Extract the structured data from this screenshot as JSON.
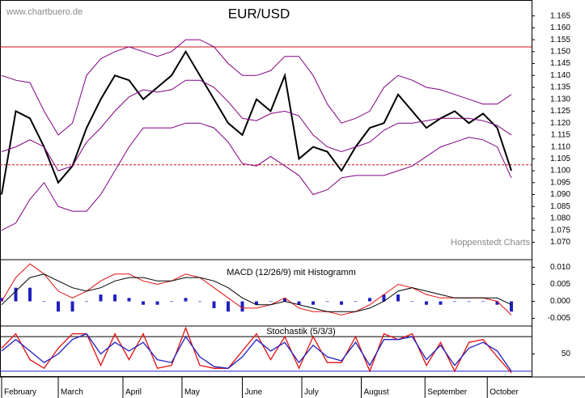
{
  "chart_data": [
    {
      "type": "line",
      "title": "EUR/USD",
      "annotations": [
        "www.chartbuero.de",
        "Hoppenstedt Charts"
      ],
      "x": [
        0,
        1,
        2,
        3,
        4,
        5,
        6,
        7,
        8,
        9,
        10,
        11,
        12,
        13,
        14,
        15,
        16,
        17,
        18,
        19,
        20,
        21,
        22,
        23,
        24,
        25,
        26,
        27,
        28,
        29,
        30,
        31,
        32,
        33,
        34,
        35,
        36
      ],
      "xlim": [
        0,
        37.43
      ],
      "ylim": [
        1.063,
        1.171
      ],
      "yticks": [
        {
          "value": 1.07,
          "label": "1.070"
        },
        1.075,
        {
          "value": 1.08,
          "label": "1.080"
        },
        1.085,
        {
          "value": 1.09,
          "label": "1.090"
        },
        1.095,
        {
          "value": 1.1,
          "label": "1.100"
        },
        1.105,
        {
          "value": 1.11,
          "label": "1.110"
        },
        1.115,
        {
          "value": 1.12,
          "label": "1.120"
        },
        1.125,
        {
          "value": 1.13,
          "label": "1.130"
        },
        1.135,
        {
          "value": 1.14,
          "label": "1.140"
        },
        1.145,
        {
          "value": 1.15,
          "label": "1.150"
        },
        1.155,
        {
          "value": 1.16,
          "label": "1.160"
        },
        1.165
      ],
      "hlines": [
        {
          "value": 1.152,
          "color": "#d01010",
          "dashed": false
        },
        {
          "value": 1.1025,
          "color": "#d01010",
          "dashed": true
        }
      ],
      "series": [
        {
          "color": "#000000",
          "width": 2,
          "values": [
            1.09,
            1.125,
            1.122,
            1.11,
            1.095,
            1.102,
            1.118,
            1.13,
            1.14,
            1.138,
            1.13,
            1.135,
            1.14,
            1.15,
            1.14,
            1.13,
            1.12,
            1.115,
            1.13,
            1.125,
            1.14,
            1.105,
            1.11,
            1.108,
            1.1,
            1.11,
            1.118,
            1.12,
            1.132,
            1.125,
            1.118,
            1.122,
            1.125,
            1.12,
            1.124,
            1.118,
            1.1
          ]
        },
        {
          "color": "#800080",
          "width": 1,
          "values": [
            1.14,
            1.138,
            1.137,
            1.125,
            1.115,
            1.12,
            1.14,
            1.147,
            1.15,
            1.152,
            1.15,
            1.148,
            1.15,
            1.155,
            1.155,
            1.152,
            1.145,
            1.14,
            1.14,
            1.142,
            1.148,
            1.148,
            1.14,
            1.128,
            1.12,
            1.122,
            1.125,
            1.135,
            1.14,
            1.138,
            1.135,
            1.134,
            1.132,
            1.13,
            1.128,
            1.128,
            1.132
          ]
        },
        {
          "color": "#800080",
          "width": 1,
          "values": [
            1.108,
            1.11,
            1.113,
            1.11,
            1.1,
            1.102,
            1.112,
            1.118,
            1.125,
            1.131,
            1.134,
            1.133,
            1.134,
            1.138,
            1.138,
            1.135,
            1.129,
            1.122,
            1.121,
            1.124,
            1.125,
            1.123,
            1.115,
            1.11,
            1.108,
            1.11,
            1.112,
            1.117,
            1.12,
            1.12,
            1.121,
            1.122,
            1.122,
            1.122,
            1.121,
            1.119,
            1.115
          ]
        },
        {
          "color": "#800080",
          "width": 1,
          "values": [
            1.075,
            1.078,
            1.088,
            1.095,
            1.085,
            1.083,
            1.083,
            1.09,
            1.1,
            1.11,
            1.118,
            1.118,
            1.118,
            1.12,
            1.12,
            1.118,
            1.112,
            1.103,
            1.102,
            1.106,
            1.102,
            1.098,
            1.09,
            1.092,
            1.097,
            1.098,
            1.098,
            1.098,
            1.1,
            1.102,
            1.106,
            1.11,
            1.112,
            1.114,
            1.113,
            1.11,
            1.097
          ]
        }
      ]
    },
    {
      "type": "macd",
      "title": "MACD (12/26/9) mit Histogramm",
      "x": [
        0,
        1,
        2,
        3,
        4,
        5,
        6,
        7,
        8,
        9,
        10,
        11,
        12,
        13,
        14,
        15,
        16,
        17,
        18,
        19,
        20,
        21,
        22,
        23,
        24,
        25,
        26,
        27,
        28,
        29,
        30,
        31,
        32,
        33,
        34,
        35,
        36
      ],
      "xlim": [
        0,
        37.43
      ],
      "ylim": [
        -0.007,
        0.012
      ],
      "yticks": [
        {
          "value": 0.01,
          "label": "0.010"
        },
        0.005,
        {
          "value": 0,
          "label": "0.000"
        },
        -0.005
      ],
      "histogram": {
        "color": "#2020c0",
        "values": [
          0.001,
          0.004,
          0.004,
          0.0,
          -0.003,
          -0.003,
          0.0,
          0.002,
          0.002,
          0.001,
          -0.001,
          -0.001,
          0.0,
          0.001,
          0.0,
          -0.002,
          -0.003,
          -0.003,
          -0.001,
          0.0,
          0.001,
          -0.001,
          -0.001,
          0.0,
          -0.001,
          0.0,
          0.001,
          0.002,
          0.002,
          0.0,
          -0.001,
          -0.001,
          0.0,
          0.0,
          0.0,
          -0.001,
          -0.003
        ]
      },
      "series": [
        {
          "color": "#e01010",
          "width": 1,
          "values": [
            0.0,
            0.007,
            0.011,
            0.008,
            0.003,
            0.001,
            0.003,
            0.006,
            0.008,
            0.008,
            0.006,
            0.005,
            0.006,
            0.008,
            0.007,
            0.004,
            0.001,
            -0.002,
            -0.002,
            -0.001,
            0.001,
            -0.002,
            -0.003,
            -0.003,
            -0.004,
            -0.003,
            -0.001,
            0.002,
            0.005,
            0.004,
            0.002,
            0.001,
            0.001,
            0.001,
            0.001,
            0.0,
            -0.004
          ]
        },
        {
          "color": "#000000",
          "width": 1,
          "values": [
            -0.001,
            0.003,
            0.007,
            0.008,
            0.006,
            0.004,
            0.003,
            0.004,
            0.006,
            0.007,
            0.007,
            0.006,
            0.006,
            0.007,
            0.007,
            0.006,
            0.004,
            0.001,
            -0.001,
            -0.001,
            0.0,
            -0.001,
            -0.002,
            -0.003,
            -0.003,
            -0.003,
            -0.002,
            0.0,
            0.003,
            0.004,
            0.003,
            0.002,
            0.001,
            0.001,
            0.001,
            0.001,
            -0.001
          ]
        }
      ]
    },
    {
      "type": "stochastic",
      "title": "Stochastik (5/3/3)",
      "x": [
        0,
        1,
        2,
        3,
        4,
        5,
        6,
        7,
        8,
        9,
        10,
        11,
        12,
        13,
        14,
        15,
        16,
        17,
        18,
        19,
        20,
        21,
        22,
        23,
        24,
        25,
        26,
        27,
        28,
        29,
        30,
        31,
        32,
        33,
        34,
        35,
        36
      ],
      "xlim": [
        0,
        37.43
      ],
      "ylim": [
        10,
        97
      ],
      "yticks": [
        50
      ],
      "levels": [
        {
          "value": 80,
          "color": "#000000"
        },
        {
          "value": 20,
          "color": "#2020c0"
        }
      ],
      "xticks": [
        {
          "value": 0,
          "label": "February"
        },
        {
          "value": 4,
          "label": "March"
        },
        {
          "value": 8.57,
          "label": "April"
        },
        {
          "value": 12.74,
          "label": "May"
        },
        {
          "value": 17,
          "label": "June"
        },
        {
          "value": 21.2,
          "label": "July"
        },
        {
          "value": 25.4,
          "label": "August"
        },
        {
          "value": 29.9,
          "label": "September"
        },
        {
          "value": 34.3,
          "label": "October"
        }
      ],
      "series": [
        {
          "color": "#e01010",
          "width": 1.3,
          "values": [
            60,
            85,
            40,
            25,
            60,
            85,
            85,
            30,
            85,
            40,
            85,
            25,
            30,
            95,
            30,
            25,
            25,
            55,
            85,
            40,
            80,
            25,
            80,
            35,
            35,
            80,
            20,
            85,
            75,
            85,
            30,
            70,
            20,
            70,
            75,
            45,
            17
          ]
        },
        {
          "color": "#2020c0",
          "width": 1.3,
          "values": [
            55,
            75,
            55,
            35,
            50,
            75,
            85,
            50,
            70,
            55,
            70,
            40,
            35,
            80,
            45,
            28,
            25,
            45,
            75,
            55,
            70,
            35,
            65,
            45,
            38,
            70,
            30,
            75,
            75,
            80,
            40,
            65,
            30,
            60,
            70,
            55,
            20
          ]
        }
      ]
    }
  ]
}
